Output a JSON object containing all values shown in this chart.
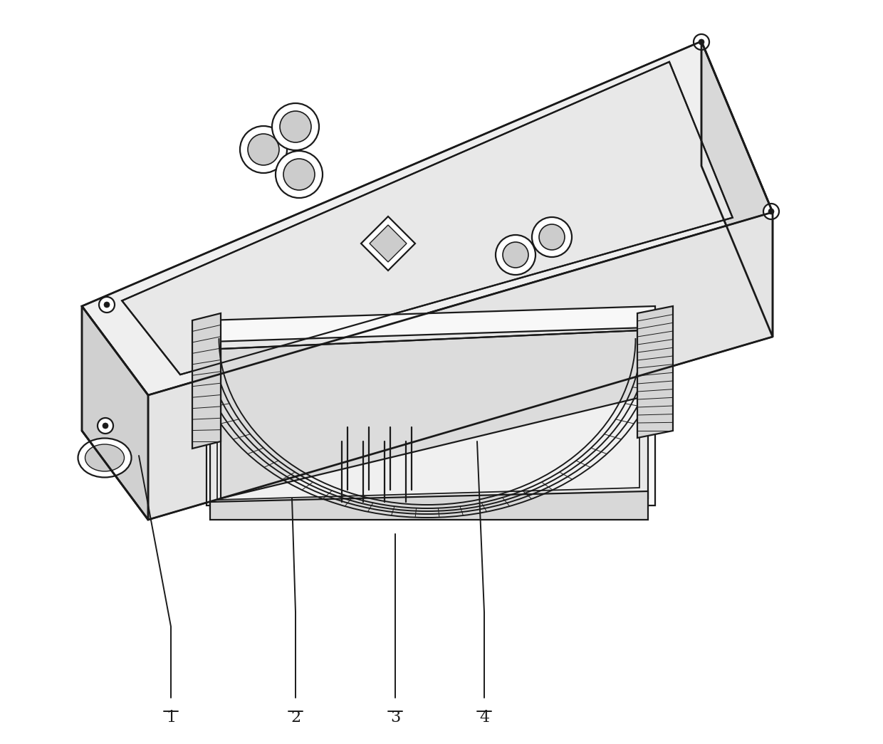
{
  "bg_color": "#ffffff",
  "line_color": "#1a1a1a",
  "fill_top": "#efefef",
  "fill_right": "#d8d8d8",
  "fill_front": "#e4e4e4",
  "fill_left": "#d0d0d0",
  "fill_inner_top": "#e8e8e8",
  "fill_cutout": "#f0f0f0",
  "fill_inner_box": "#dcdcdc",
  "label_fontsize": 16,
  "figsize": [
    12.4,
    10.45
  ],
  "dpi": 100,
  "lw_main": 1.6,
  "lw_thick": 2.0
}
